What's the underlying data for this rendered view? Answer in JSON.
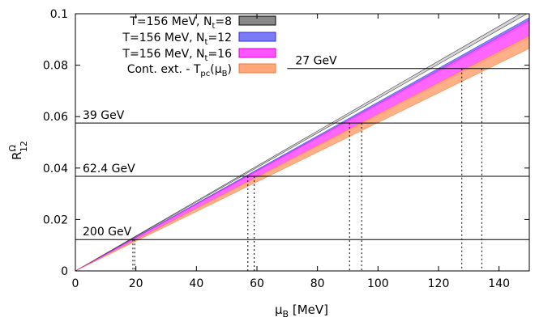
{
  "chart_data": {
    "type": "line",
    "xlabel": "μ_B [MeV]",
    "ylabel": "R^Ω_12",
    "xlim": [
      0,
      150
    ],
    "ylim": [
      0,
      0.1
    ],
    "xticks": [
      0,
      20,
      40,
      60,
      80,
      100,
      120,
      140
    ],
    "xtick_labels": [
      "0",
      "20",
      "40",
      "60",
      "80",
      "100",
      "120",
      "140"
    ],
    "yticks": [
      0,
      0.02,
      0.04,
      0.06,
      0.08,
      0.1
    ],
    "ytick_labels": [
      "0",
      "0.02",
      "0.04",
      "0.06",
      "0.08",
      "0.1"
    ],
    "grid": false,
    "legend_position": "top-left",
    "series": [
      {
        "name": "T=156 MeV, N_t=8",
        "kind": "band",
        "color": "#888888",
        "edge": "#000000",
        "x": [
          0,
          150
        ],
        "lower": [
          0,
          0.1005
        ],
        "upper": [
          0,
          0.102
        ]
      },
      {
        "name": "T=156 MeV, N_t=12",
        "kind": "band",
        "color": "#7b7bf5",
        "edge": "#2e2ee0",
        "x": [
          0,
          150
        ],
        "lower": [
          0,
          0.0965
        ],
        "upper": [
          0,
          0.0985
        ]
      },
      {
        "name": "T=156 MeV, N_t=16",
        "kind": "band",
        "color": "#ff55ff",
        "edge": "#dd00dd",
        "x": [
          0,
          150
        ],
        "lower": [
          0,
          0.0905
        ],
        "upper": [
          0,
          0.0975
        ]
      },
      {
        "name": "Cont. ext. - T_pc(μ_B)",
        "kind": "band",
        "color": "#ffa77a",
        "edge": "#f07830",
        "x": [
          0,
          150
        ],
        "lower": [
          0,
          0.0865
        ],
        "upper": [
          0,
          0.0915
        ]
      }
    ],
    "reference_lines": [
      {
        "label": "27 GeV",
        "y": 0.0787,
        "x_start": 70,
        "x_left": [
          127.7
        ],
        "x_right": [
          134.3
        ]
      },
      {
        "label": "39 GeV",
        "y": 0.0575,
        "x_start": 0,
        "x_left": [
          90.6
        ],
        "x_right": [
          94.6
        ]
      },
      {
        "label": "62.4 GeV",
        "y": 0.0368,
        "x_start": 0,
        "x_left": [
          57.0
        ],
        "x_right": [
          59.1
        ]
      },
      {
        "label": "200 GeV",
        "y": 0.0122,
        "x_start": 0,
        "x_left": [
          19.0
        ],
        "x_right": [
          19.6
        ]
      }
    ]
  },
  "legend": [
    {
      "prefix": "T=156 MeV, N",
      "sub": "t",
      "suffix": "=8"
    },
    {
      "prefix": "T=156 MeV, N",
      "sub": "t",
      "suffix": "=12"
    },
    {
      "prefix": "T=156 MeV, N",
      "sub": "t",
      "suffix": "=16"
    },
    {
      "prefix": "Cont. ext. - T",
      "sub": "pc",
      "suffix": "(μ",
      "sub2": "B",
      "suffix2": ")"
    }
  ],
  "axis_text": {
    "x_main": "μ",
    "x_sub": "B",
    "x_tail": " [MeV]",
    "y_main": "R",
    "y_sup": "Ω",
    "y_sub": "12"
  }
}
